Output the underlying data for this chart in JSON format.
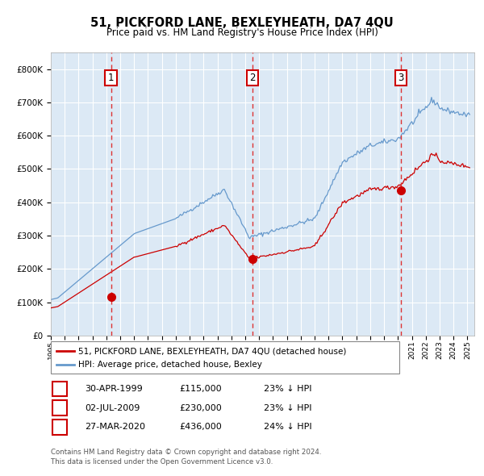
{
  "title": "51, PICKFORD LANE, BEXLEYHEATH, DA7 4QU",
  "subtitle": "Price paid vs. HM Land Registry's House Price Index (HPI)",
  "bg_color": "#dce9f5",
  "grid_color": "#ffffff",
  "ylim": [
    0,
    850000
  ],
  "yticks": [
    0,
    100000,
    200000,
    300000,
    400000,
    500000,
    600000,
    700000,
    800000
  ],
  "ytick_labels": [
    "£0",
    "£100K",
    "£200K",
    "£300K",
    "£400K",
    "£500K",
    "£600K",
    "£700K",
    "£800K"
  ],
  "sale_dates_num": [
    1999.33,
    2009.5,
    2020.23
  ],
  "sale_prices": [
    115000,
    230000,
    436000
  ],
  "sale_labels": [
    "1",
    "2",
    "3"
  ],
  "sale_date_strs": [
    "30-APR-1999",
    "02-JUL-2009",
    "27-MAR-2020"
  ],
  "sale_pct": [
    "23%",
    "23%",
    "24%"
  ],
  "legend_label_red": "51, PICKFORD LANE, BEXLEYHEATH, DA7 4QU (detached house)",
  "legend_label_blue": "HPI: Average price, detached house, Bexley",
  "footer_line1": "Contains HM Land Registry data © Crown copyright and database right 2024.",
  "footer_line2": "This data is licensed under the Open Government Licence v3.0.",
  "red_line_color": "#cc0000",
  "blue_line_color": "#6699cc",
  "sale_dot_color": "#cc0000",
  "vline_color": "#dd3333",
  "box_edge_color": "#cc0000",
  "xlim_left": 1995.0,
  "xlim_right": 2025.5
}
